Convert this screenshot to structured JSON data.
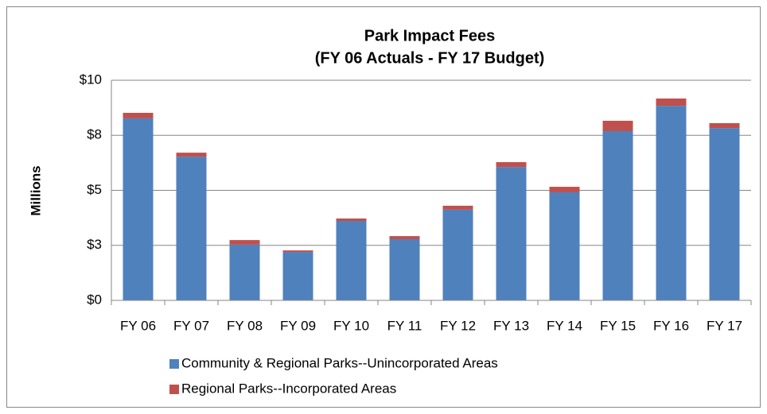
{
  "chart_data": {
    "type": "stacked_bar",
    "title": "Park Impact Fees",
    "subtitle": "(FY 06 Actuals - FY 17 Budget)",
    "y_label": "Millions",
    "categories": [
      "FY 06",
      "FY 07",
      "FY 08",
      "FY 09",
      "FY 10",
      "FY 11",
      "FY 12",
      "FY 13",
      "FY 14",
      "FY 15",
      "FY 16",
      "FY 17"
    ],
    "series": [
      {
        "name": "Community & Regional Parks--Unincorporated Areas",
        "color": "#4f81bd",
        "values": [
          8.27,
          6.53,
          2.53,
          2.2,
          3.61,
          2.78,
          4.12,
          6.06,
          4.91,
          7.69,
          8.84,
          7.83
        ]
      },
      {
        "name": "Regional Parks--Incorporated Areas",
        "color": "#c0504d",
        "values": [
          0.25,
          0.18,
          0.21,
          0.07,
          0.11,
          0.14,
          0.18,
          0.22,
          0.25,
          0.47,
          0.33,
          0.22
        ]
      }
    ],
    "ylim": [
      0,
      10
    ],
    "yticks": [
      {
        "value": 0,
        "label": "$0"
      },
      {
        "value": 2.5,
        "label": "$3"
      },
      {
        "value": 5,
        "label": "$5"
      },
      {
        "value": 7.5,
        "label": "$8"
      },
      {
        "value": 10,
        "label": "$10"
      }
    ],
    "grid": true,
    "legend": "bottom"
  }
}
